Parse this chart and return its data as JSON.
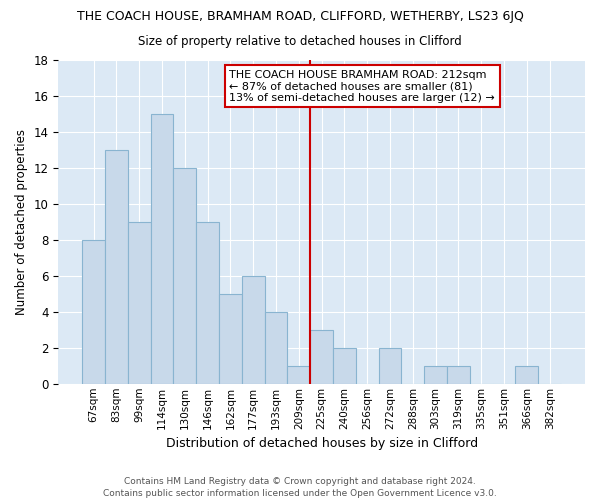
{
  "title": "THE COACH HOUSE, BRAMHAM ROAD, CLIFFORD, WETHERBY, LS23 6JQ",
  "subtitle": "Size of property relative to detached houses in Clifford",
  "xlabel": "Distribution of detached houses by size in Clifford",
  "ylabel": "Number of detached properties",
  "bar_labels": [
    "67sqm",
    "83sqm",
    "99sqm",
    "114sqm",
    "130sqm",
    "146sqm",
    "162sqm",
    "177sqm",
    "193sqm",
    "209sqm",
    "225sqm",
    "240sqm",
    "256sqm",
    "272sqm",
    "288sqm",
    "303sqm",
    "319sqm",
    "335sqm",
    "351sqm",
    "366sqm",
    "382sqm"
  ],
  "bar_heights": [
    8,
    13,
    9,
    15,
    12,
    9,
    5,
    6,
    4,
    1,
    3,
    2,
    0,
    2,
    0,
    1,
    1,
    0,
    0,
    1,
    0
  ],
  "bar_color": "#c8d9ea",
  "bar_edge_color": "#89b4d0",
  "highlight_line_color": "#cc0000",
  "annotation_title": "THE COACH HOUSE BRAMHAM ROAD: 212sqm",
  "annotation_line1": "← 87% of detached houses are smaller (81)",
  "annotation_line2": "13% of semi-detached houses are larger (12) →",
  "annotation_box_color": "#ffffff",
  "annotation_box_edge": "#cc0000",
  "ylim": [
    0,
    18
  ],
  "yticks": [
    0,
    2,
    4,
    6,
    8,
    10,
    12,
    14,
    16,
    18
  ],
  "footer1": "Contains HM Land Registry data © Crown copyright and database right 2024.",
  "footer2": "Contains public sector information licensed under the Open Government Licence v3.0.",
  "bg_color": "#ffffff",
  "plot_bg_color": "#dce9f5",
  "grid_color": "#ffffff"
}
